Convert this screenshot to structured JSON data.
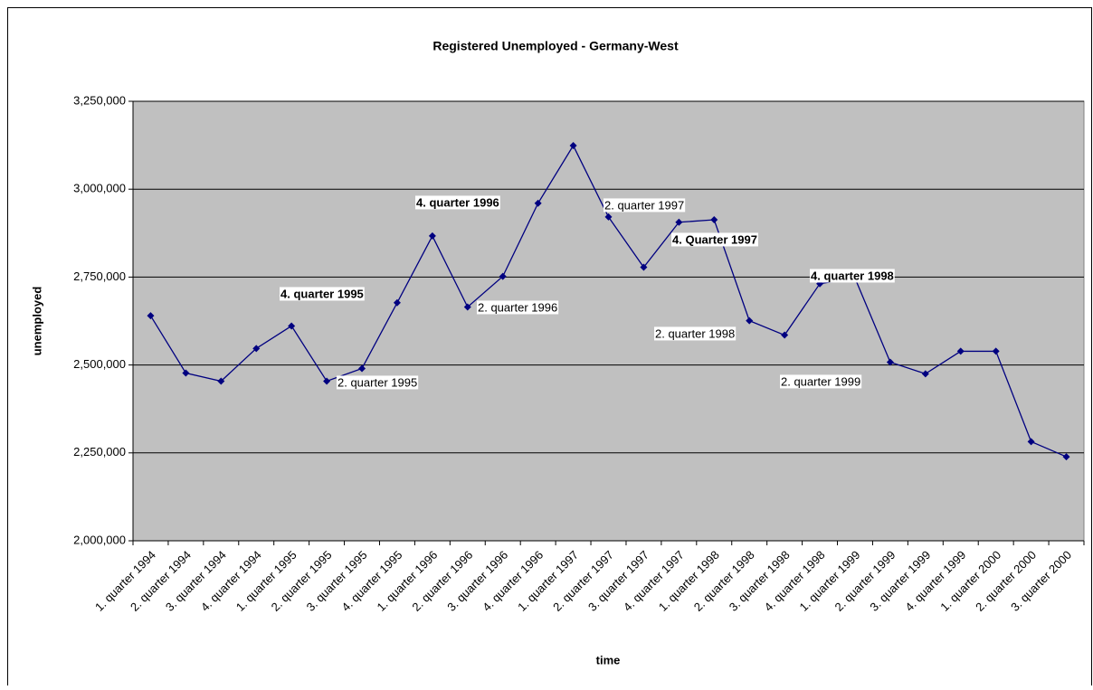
{
  "chart_data": {
    "type": "line",
    "title": "Registered Unemployed - Germany-West",
    "x_label": "time",
    "y_label": "unemployed",
    "categories": [
      "1. quarter 1994",
      "2. quarter 1994",
      "3. quarter 1994",
      "4. quarter 1994",
      "1. quarter 1995",
      "2. quarter 1995",
      "3. quarter 1995",
      "4. quarter 1995",
      "1. quarter 1996",
      "2. quarter 1996",
      "3. quarter 1996",
      "4. quarter 1996",
      "1. quarter 1997",
      "2. quarter 1997",
      "3. quarter 1997",
      "4. quarter 1997",
      "1. quarter 1998",
      "2. quarter 1998",
      "3. quarter 1998",
      "4. quarter 1998",
      "1. quarter 1999",
      "2. quarter 1999",
      "3. quarter 1999",
      "4. quarter 1999",
      "1. quarter 2000",
      "2. quarter 2000",
      "3. quarter 2000"
    ],
    "values": [
      2640000,
      2477000,
      2454000,
      2547000,
      2611000,
      2454000,
      2490000,
      2677000,
      2867000,
      2665000,
      2752000,
      2960000,
      3124000,
      2921000,
      2778000,
      2906000,
      2913000,
      2626000,
      2585000,
      2731000,
      2747000,
      2508000,
      2475000,
      2539000,
      2539000,
      2282000,
      2239000
    ],
    "color": "#000080",
    "plot_background": "#c0c0c0",
    "grid": true,
    "ylim": [
      2000000,
      3250000
    ],
    "yticks": [
      {
        "value": 2000000,
        "label": "2,000,000"
      },
      {
        "value": 2250000,
        "label": "2,250,000"
      },
      {
        "value": 2500000,
        "label": "2,500,000"
      },
      {
        "value": 2750000,
        "label": "2,750,000"
      },
      {
        "value": 3000000,
        "label": "3,000,000"
      },
      {
        "value": 3250000,
        "label": "3,250,000"
      }
    ],
    "annotations": [
      "4. quarter 1996",
      "2. quarter 1997",
      "4. Quarter 1997",
      "4. quarter 1998",
      "4. quarter 1995",
      "2. quarter 1996",
      "2. quarter 1998",
      "2. quarter 1995",
      "2. quarter 1999"
    ]
  }
}
